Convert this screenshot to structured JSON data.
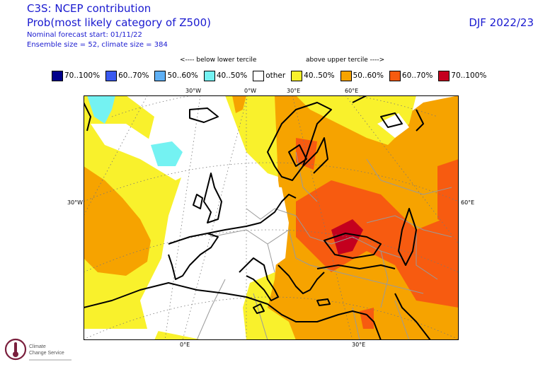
{
  "header": {
    "title": "C3S: NCEP contribution",
    "subtitle": "Prob(most likely category of Z500)",
    "forecast_start": "Nominal forecast start: 01/11/22",
    "ensemble": "Ensemble size = 52, climate size = 384",
    "season": "DJF 2022/23"
  },
  "terciles": {
    "below": "<---- below lower tercile",
    "above": "above upper tercile ---->"
  },
  "legend": [
    {
      "label": "70..100%",
      "color": "#00008b"
    },
    {
      "label": "60..70%",
      "color": "#3a5af0"
    },
    {
      "label": "50..60%",
      "color": "#5fb0f5"
    },
    {
      "label": "40..50%",
      "color": "#74f2f2"
    },
    {
      "label": "other",
      "color": "#ffffff"
    },
    {
      "label": "40..50%",
      "color": "#f9f12c"
    },
    {
      "label": "50..60%",
      "color": "#f6a300"
    },
    {
      "label": "60..70%",
      "color": "#f75b10"
    },
    {
      "label": "70..100%",
      "color": "#c4001e"
    }
  ],
  "grid_labels": {
    "top_30w": "30°W",
    "top_0w": "0°W",
    "top_30e": "30°E",
    "top_60e": "60°E",
    "left_30w": "30°W",
    "right_60e": "60°E",
    "bottom_0e": "0°E",
    "bottom_30e": "30°E"
  },
  "logo": {
    "name_line1": "Climate",
    "name_line2": "Change Service"
  }
}
